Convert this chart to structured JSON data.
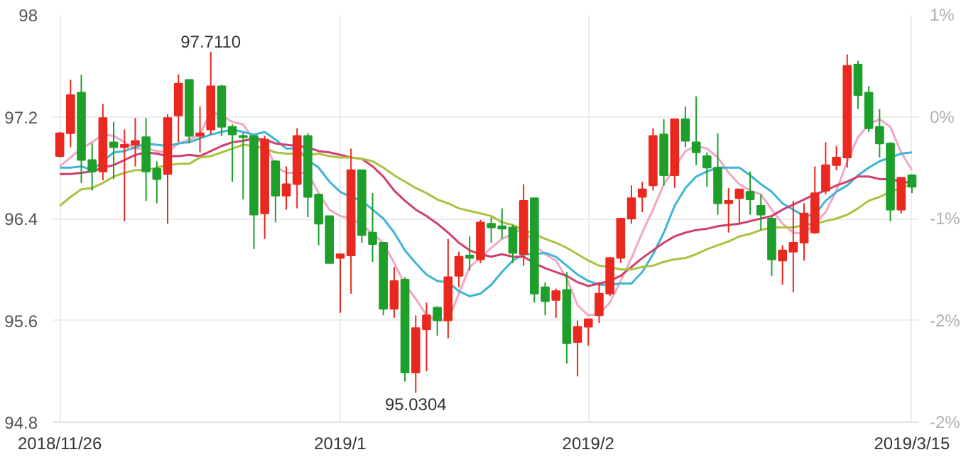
{
  "chart_data": {
    "type": "candlestick",
    "categories": [
      "2018/11/26",
      null,
      null,
      null,
      null,
      null,
      null,
      null,
      null,
      null,
      null,
      null,
      null,
      null,
      null,
      null,
      null,
      null,
      null,
      null,
      null,
      null,
      null,
      null,
      null,
      null,
      "2019/1",
      null,
      null,
      null,
      null,
      null,
      null,
      null,
      null,
      null,
      null,
      null,
      null,
      null,
      null,
      null,
      null,
      null,
      null,
      null,
      null,
      null,
      null,
      "2019/2",
      null,
      null,
      null,
      null,
      null,
      null,
      null,
      null,
      null,
      null,
      null,
      null,
      null,
      null,
      null,
      null,
      null,
      null,
      null,
      null,
      null,
      null,
      null,
      null,
      null,
      null,
      null,
      null,
      null,
      "2019/3/15"
    ],
    "ohlc": [
      [
        96.89,
        97.08,
        96.88,
        97.07
      ],
      [
        97.07,
        97.49,
        96.96,
        97.37
      ],
      [
        97.39,
        97.53,
        96.68,
        96.86
      ],
      [
        96.86,
        96.99,
        96.62,
        96.77
      ],
      [
        96.77,
        97.3,
        96.7,
        97.19
      ],
      [
        97.0,
        97.16,
        96.71,
        96.96
      ],
      [
        96.96,
        97.1,
        96.38,
        96.98
      ],
      [
        96.98,
        97.19,
        96.81,
        97.01
      ],
      [
        97.04,
        97.19,
        96.54,
        96.77
      ],
      [
        96.79,
        96.85,
        96.52,
        96.71
      ],
      [
        96.75,
        97.22,
        96.36,
        97.19
      ],
      [
        97.21,
        97.53,
        97.0,
        97.46
      ],
      [
        97.49,
        97.49,
        96.99,
        97.05
      ],
      [
        97.05,
        97.28,
        96.92,
        97.07
      ],
      [
        97.1,
        97.711,
        97.06,
        97.44
      ],
      [
        97.44,
        97.45,
        97.05,
        97.12
      ],
      [
        97.12,
        97.14,
        96.69,
        97.06
      ],
      [
        97.05,
        97.07,
        96.55,
        97.04
      ],
      [
        97.05,
        97.05,
        96.16,
        96.43
      ],
      [
        96.44,
        97.05,
        96.24,
        97.02
      ],
      [
        96.85,
        96.86,
        96.37,
        96.58
      ],
      [
        96.58,
        96.81,
        96.47,
        96.67
      ],
      [
        96.67,
        97.11,
        96.48,
        97.05
      ],
      [
        97.05,
        97.07,
        96.41,
        96.57
      ],
      [
        96.59,
        96.59,
        96.19,
        96.36
      ],
      [
        96.42,
        96.42,
        96.05,
        96.05
      ],
      [
        96.09,
        96.12,
        95.66,
        96.12
      ],
      [
        96.11,
        96.95,
        95.81,
        96.78
      ],
      [
        96.78,
        96.78,
        96.21,
        96.27
      ],
      [
        96.29,
        96.6,
        96.06,
        96.2
      ],
      [
        96.21,
        96.21,
        95.64,
        95.69
      ],
      [
        95.69,
        96.02,
        95.62,
        95.91
      ],
      [
        95.92,
        95.94,
        95.12,
        95.19
      ],
      [
        95.19,
        95.64,
        95.0304,
        95.54
      ],
      [
        95.53,
        95.74,
        95.2,
        95.64
      ],
      [
        95.7,
        95.71,
        95.48,
        95.6
      ],
      [
        95.6,
        96.24,
        95.46,
        95.94
      ],
      [
        95.95,
        96.14,
        95.86,
        96.1
      ],
      [
        96.11,
        96.26,
        95.99,
        96.09
      ],
      [
        96.08,
        96.39,
        96.05,
        96.37
      ],
      [
        96.36,
        96.41,
        96.21,
        96.33
      ],
      [
        96.34,
        96.48,
        96.24,
        96.32
      ],
      [
        96.33,
        96.35,
        96.05,
        96.13
      ],
      [
        96.12,
        96.67,
        96.03,
        96.54
      ],
      [
        96.56,
        96.56,
        95.74,
        95.81
      ],
      [
        95.86,
        95.9,
        95.64,
        95.75
      ],
      [
        95.76,
        95.85,
        95.62,
        95.83
      ],
      [
        95.84,
        95.98,
        95.26,
        95.42
      ],
      [
        95.43,
        95.6,
        95.16,
        95.55
      ],
      [
        95.55,
        95.61,
        95.4,
        95.61
      ],
      [
        95.64,
        95.9,
        95.58,
        95.81
      ],
      [
        95.81,
        96.1,
        95.79,
        96.09
      ],
      [
        96.09,
        96.4,
        96.05,
        96.4
      ],
      [
        96.4,
        96.66,
        96.36,
        96.56
      ],
      [
        96.57,
        96.69,
        96.45,
        96.63
      ],
      [
        96.66,
        97.11,
        96.62,
        97.05
      ],
      [
        97.06,
        97.18,
        96.66,
        96.74
      ],
      [
        96.74,
        97.18,
        96.64,
        97.18
      ],
      [
        97.18,
        97.28,
        96.96,
        97.01
      ],
      [
        97.0,
        97.36,
        96.82,
        96.92
      ],
      [
        96.89,
        96.92,
        96.65,
        96.8
      ],
      [
        96.8,
        97.07,
        96.43,
        96.52
      ],
      [
        96.52,
        96.64,
        96.29,
        96.54
      ],
      [
        96.56,
        96.63,
        96.36,
        96.63
      ],
      [
        96.61,
        96.77,
        96.43,
        96.55
      ],
      [
        96.5,
        96.59,
        96.31,
        96.43
      ],
      [
        96.4,
        96.42,
        95.95,
        96.08
      ],
      [
        96.07,
        96.19,
        95.88,
        96.15
      ],
      [
        96.14,
        96.54,
        95.82,
        96.21
      ],
      [
        96.21,
        96.52,
        96.07,
        96.44
      ],
      [
        96.29,
        96.81,
        96.28,
        96.6
      ],
      [
        96.62,
        97.0,
        96.59,
        96.82
      ],
      [
        96.82,
        96.97,
        96.78,
        96.88
      ],
      [
        96.88,
        97.69,
        96.8,
        97.6
      ],
      [
        97.61,
        97.64,
        97.26,
        97.37
      ],
      [
        97.39,
        97.44,
        97.08,
        97.11
      ],
      [
        97.12,
        97.26,
        96.88,
        96.99
      ],
      [
        96.99,
        97.0,
        96.38,
        96.47
      ],
      [
        96.47,
        96.72,
        96.44,
        96.72
      ],
      [
        96.74,
        96.75,
        96.6,
        96.65
      ]
    ],
    "colors": [
      "#e9281f",
      "#e9281f",
      "#1e9e2a",
      "#1e9e2a",
      "#e9281f",
      "#1e9e2a",
      "#e9281f",
      "#e9281f",
      "#1e9e2a",
      "#1e9e2a",
      "#e9281f",
      "#e9281f",
      "#1e9e2a",
      "#e9281f",
      "#e9281f",
      "#1e9e2a",
      "#1e9e2a",
      "#1e9e2a",
      "#1e9e2a",
      "#e9281f",
      "#1e9e2a",
      "#e9281f",
      "#e9281f",
      "#1e9e2a",
      "#1e9e2a",
      "#1e9e2a",
      "#e9281f",
      "#e9281f",
      "#1e9e2a",
      "#1e9e2a",
      "#1e9e2a",
      "#e9281f",
      "#1e9e2a",
      "#e9281f",
      "#e9281f",
      "#1e9e2a",
      "#e9281f",
      "#e9281f",
      "#1e9e2a",
      "#e9281f",
      "#1e9e2a",
      "#1e9e2a",
      "#1e9e2a",
      "#e9281f",
      "#1e9e2a",
      "#1e9e2a",
      "#e9281f",
      "#1e9e2a",
      "#e9281f",
      "#e9281f",
      "#e9281f",
      "#e9281f",
      "#e9281f",
      "#e9281f",
      "#e9281f",
      "#e9281f",
      "#1e9e2a",
      "#e9281f",
      "#1e9e2a",
      "#1e9e2a",
      "#1e9e2a",
      "#1e9e2a",
      "#e9281f",
      "#e9281f",
      "#1e9e2a",
      "#1e9e2a",
      "#1e9e2a",
      "#e9281f",
      "#e9281f",
      "#e9281f",
      "#e9281f",
      "#e9281f",
      "#e9281f",
      "#e9281f",
      "#1e9e2a",
      "#1e9e2a",
      "#1e9e2a",
      "#1e9e2a",
      "#e9281f",
      "#1e9e2a"
    ],
    "series": [
      {
        "type": "line",
        "color": "#f2a7c3",
        "values": [
          96.81,
          96.88,
          96.95,
          97.0,
          97.06,
          97.05,
          97.0,
          96.95,
          96.95,
          96.93,
          96.92,
          96.99,
          97.02,
          97.06,
          97.24,
          97.21,
          97.16,
          97.14,
          97.02,
          97.0,
          96.81,
          96.76,
          96.76,
          96.76,
          96.6,
          96.47,
          96.42,
          96.4,
          96.35,
          96.28,
          96.21,
          96.05,
          95.88,
          95.77,
          95.64,
          95.6,
          95.6,
          95.81,
          96.02,
          96.09,
          96.17,
          96.24,
          96.28,
          96.33,
          96.19,
          96.12,
          96.07,
          95.93,
          95.72,
          95.64,
          95.65,
          95.74,
          95.91,
          96.09,
          96.29,
          96.47,
          96.67,
          null,
          96.93,
          96.97,
          96.95,
          96.88,
          96.76,
          96.67,
          96.62,
          96.59,
          96.47,
          96.36,
          96.29,
          96.28,
          96.36,
          96.45,
          96.62,
          96.85,
          97.04,
          97.14,
          97.18,
          97.12,
          96.92,
          96.78
        ]
      },
      {
        "type": "line",
        "color": "#3db5d6",
        "values": [
          96.8,
          96.8,
          96.81,
          96.78,
          96.85,
          96.92,
          96.93,
          96.96,
          96.99,
          96.98,
          96.97,
          96.99,
          97.0,
          97.03,
          97.06,
          97.08,
          97.1,
          97.08,
          97.06,
          97.08,
          97.02,
          96.95,
          96.95,
          96.86,
          96.8,
          96.69,
          96.61,
          96.57,
          96.54,
          96.47,
          96.4,
          96.29,
          96.15,
          96.05,
          95.96,
          95.91,
          95.9,
          95.83,
          95.79,
          95.81,
          95.88,
          95.98,
          96.07,
          96.12,
          96.12,
          96.13,
          96.1,
          96.03,
          95.96,
          95.91,
          95.88,
          95.88,
          95.89,
          95.89,
          95.98,
          96.12,
          96.29,
          96.5,
          96.64,
          96.73,
          96.77,
          96.8,
          96.8,
          96.8,
          96.74,
          96.67,
          96.61,
          96.52,
          96.47,
          96.42,
          96.43,
          96.54,
          96.61,
          96.66,
          96.74,
          96.8,
          96.85,
          96.88,
          96.91,
          96.92
        ]
      },
      {
        "type": "line",
        "color": "#d13f6e",
        "values": [
          96.75,
          96.75,
          96.76,
          96.77,
          96.8,
          96.82,
          96.86,
          96.9,
          96.92,
          96.91,
          96.89,
          96.89,
          96.9,
          96.89,
          96.93,
          96.97,
          97.0,
          97.01,
          97.03,
          97.02,
          96.99,
          96.98,
          96.97,
          96.96,
          96.93,
          96.92,
          96.9,
          96.88,
          96.87,
          96.81,
          96.73,
          96.62,
          96.54,
          96.47,
          96.42,
          96.36,
          96.29,
          96.21,
          96.15,
          96.12,
          96.1,
          96.12,
          96.1,
          96.1,
          96.05,
          96.01,
          95.98,
          95.95,
          95.9,
          95.87,
          95.89,
          95.91,
          95.95,
          96.02,
          96.09,
          96.15,
          96.21,
          96.26,
          96.29,
          96.31,
          96.32,
          96.34,
          96.35,
          96.36,
          96.38,
          96.4,
          96.42,
          96.47,
          96.51,
          96.55,
          96.59,
          96.62,
          96.66,
          96.69,
          96.73,
          96.73,
          96.71,
          96.71,
          96.69,
          96.68
        ]
      },
      {
        "type": "line",
        "color": "#a9c23f",
        "values": [
          96.5,
          96.57,
          96.63,
          96.64,
          96.68,
          96.73,
          96.76,
          96.78,
          96.78,
          96.8,
          96.82,
          96.83,
          96.83,
          96.88,
          96.89,
          96.92,
          96.95,
          96.98,
          96.97,
          96.95,
          96.92,
          96.91,
          96.91,
          96.9,
          96.91,
          96.89,
          96.88,
          96.88,
          96.87,
          96.85,
          96.8,
          96.74,
          96.69,
          96.64,
          96.6,
          96.55,
          96.52,
          96.48,
          96.46,
          96.44,
          96.42,
          96.37,
          96.35,
          96.31,
          96.28,
          96.24,
          96.21,
          96.17,
          96.12,
          96.07,
          96.03,
          96.02,
          96.0,
          96.0,
          96.02,
          96.03,
          96.06,
          96.08,
          96.09,
          96.12,
          96.16,
          96.19,
          96.22,
          96.26,
          96.28,
          96.31,
          96.33,
          96.33,
          96.33,
          96.35,
          96.36,
          96.38,
          96.4,
          96.43,
          96.48,
          96.54,
          96.57,
          96.61,
          96.64,
          96.67
        ]
      }
    ],
    "ylim": [
      94.8,
      98
    ],
    "yticks": [
      94.8,
      95.6,
      96.4,
      97.2,
      98
    ],
    "y2lim": [
      -2.469,
      0.823
    ],
    "y2ticks": [
      {
        "value": -2.469,
        "label": "-2%"
      },
      {
        "value": -1.646,
        "label": "-2%"
      },
      {
        "value": -0.823,
        "label": "-1%"
      },
      {
        "value": 0,
        "label": "0%"
      },
      {
        "value": 0.823,
        "label": "1%"
      }
    ],
    "annotations": [
      {
        "text": "97.7110",
        "y": 97.711
      },
      {
        "text": "95.0304",
        "y": 95.0304
      }
    ],
    "grid": true,
    "line_style": "solid"
  }
}
